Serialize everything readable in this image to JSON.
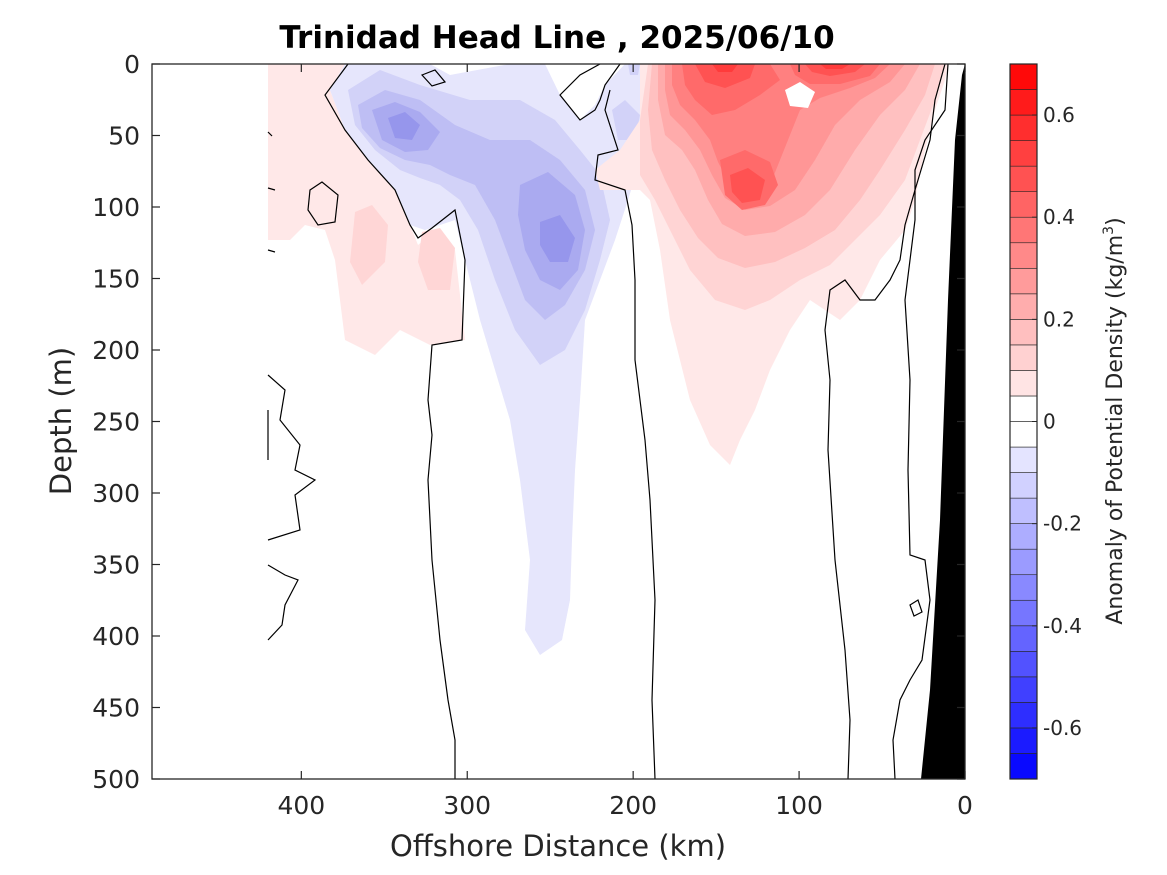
{
  "chart_data": {
    "type": "heatmap",
    "title": "Trinidad Head Line , 2025/06/10",
    "xlabel": "Offshore Distance (km)",
    "ylabel": "Depth (m)",
    "colorbar_label": "Anomaly of Potential Density (kg/m",
    "colorbar_label_sup": "3",
    "colorbar_label_end": ")",
    "xlim": [
      490,
      0
    ],
    "ylim": [
      500,
      0
    ],
    "clim": [
      -0.7,
      0.7
    ],
    "contour_interval": 0.05,
    "x_ticks": [
      400,
      300,
      200,
      100,
      0
    ],
    "x_tick_labels": [
      "400",
      "300",
      "200",
      "100",
      "0"
    ],
    "y_ticks": [
      0,
      50,
      100,
      150,
      200,
      250,
      300,
      350,
      400,
      450,
      500
    ],
    "y_tick_labels": [
      "0",
      "50",
      "100",
      "150",
      "200",
      "250",
      "300",
      "350",
      "400",
      "450",
      "500"
    ],
    "colorbar_ticks": [
      0.6,
      0.4,
      0.2,
      0,
      -0.2,
      -0.4,
      -0.6
    ],
    "colorbar_tick_labels": [
      "0.6",
      "0.4",
      "0.2",
      "0",
      "-0.2",
      "-0.4",
      "-0.6"
    ],
    "colormap": {
      "negative": "#0000ff",
      "zero": "#ffffff",
      "positive": "#ff0000"
    },
    "data_extent_x": [
      0,
      420
    ],
    "zero_contour_color": "#000000",
    "bathymetry_color": "#000000",
    "features": [
      {
        "name": "surface negative core",
        "x": 350,
        "depth": 45,
        "value": -0.3
      },
      {
        "name": "deep negative tongue",
        "x": 248,
        "depth": 130,
        "value": -0.3
      },
      {
        "name": "negative tongue bottom",
        "x": 245,
        "depth": 410,
        "value": -0.05
      },
      {
        "name": "shelf-break surface positive",
        "x": 150,
        "depth": 20,
        "value": 0.45
      },
      {
        "name": "subsurface positive core",
        "x": 130,
        "depth": 90,
        "value": 0.45
      },
      {
        "name": "near-surface positive maximum",
        "x": 80,
        "depth": 0,
        "value": 0.6
      },
      {
        "name": "offshore weak positive",
        "x": 365,
        "depth": 130,
        "value": 0.1
      }
    ]
  }
}
